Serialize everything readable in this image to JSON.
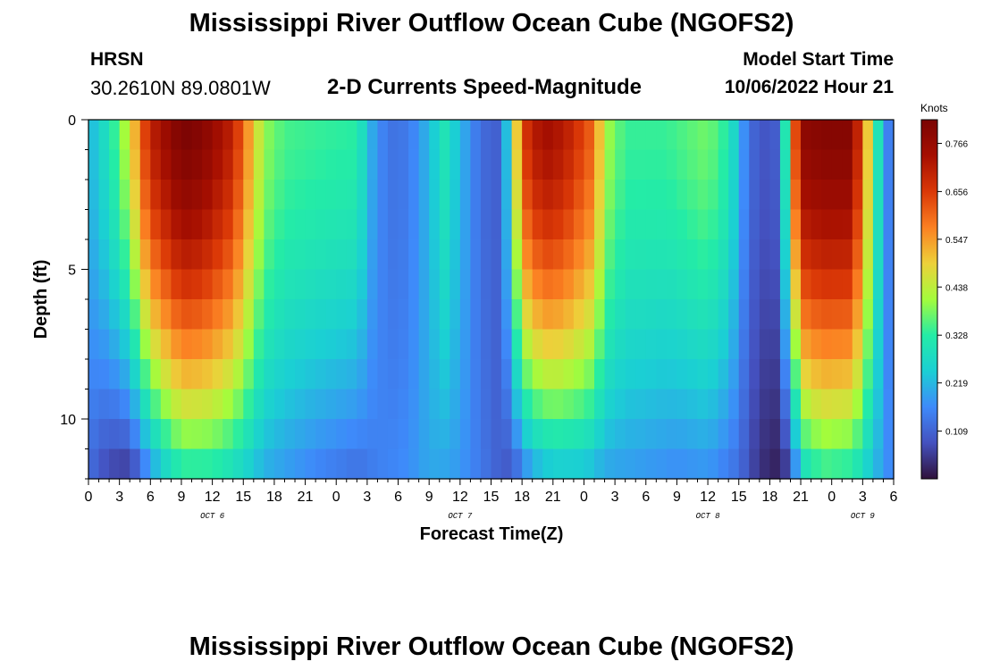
{
  "header": {
    "title": "Mississippi River Outflow Ocean Cube (NGOFS2)",
    "station_name": "HRSN",
    "station_coords": "30.2610N  89.0801W",
    "subtitle": "2-D Currents Speed-Magnitude",
    "model_start_label": "Model Start Time",
    "model_start_value": "10/06/2022 Hour 21"
  },
  "footer": {
    "title": "Mississippi River Outflow Ocean Cube (NGOFS2)"
  },
  "chart_data": {
    "type": "heatmap",
    "title": "2-D Currents Speed-Magnitude",
    "xlabel": "Forecast Time(Z)",
    "ylabel": "Depth (ft)",
    "units": "Knots",
    "x_range_hours": [
      0,
      78
    ],
    "x_ticks": [
      {
        "h": 0,
        "label": "0"
      },
      {
        "h": 3,
        "label": "3"
      },
      {
        "h": 6,
        "label": "6"
      },
      {
        "h": 9,
        "label": "9"
      },
      {
        "h": 12,
        "label": "12"
      },
      {
        "h": 15,
        "label": "15"
      },
      {
        "h": 18,
        "label": "18"
      },
      {
        "h": 21,
        "label": "21"
      },
      {
        "h": 24,
        "label": "0"
      },
      {
        "h": 27,
        "label": "3"
      },
      {
        "h": 30,
        "label": "6"
      },
      {
        "h": 33,
        "label": "9"
      },
      {
        "h": 36,
        "label": "12"
      },
      {
        "h": 39,
        "label": "15"
      },
      {
        "h": 42,
        "label": "18"
      },
      {
        "h": 45,
        "label": "21"
      },
      {
        "h": 48,
        "label": "0"
      },
      {
        "h": 51,
        "label": "3"
      },
      {
        "h": 54,
        "label": "6"
      },
      {
        "h": 57,
        "label": "9"
      },
      {
        "h": 60,
        "label": "12"
      },
      {
        "h": 63,
        "label": "15"
      },
      {
        "h": 66,
        "label": "18"
      },
      {
        "h": 69,
        "label": "21"
      },
      {
        "h": 72,
        "label": "0"
      },
      {
        "h": 75,
        "label": "3"
      },
      {
        "h": 78,
        "label": "6"
      }
    ],
    "day_labels": [
      {
        "h": 12,
        "label": "OCT 6"
      },
      {
        "h": 36,
        "label": "OCT 7"
      },
      {
        "h": 60,
        "label": "OCT 8"
      },
      {
        "h": 75,
        "label": "OCT 9"
      }
    ],
    "y_range_ft": [
      0,
      12
    ],
    "y_ticks": [
      {
        "d": 0,
        "label": "0"
      },
      {
        "d": 5,
        "label": "5"
      },
      {
        "d": 10,
        "label": "10"
      }
    ],
    "colorbar_range": [
      0.0,
      0.82
    ],
    "colorbar_ticks": [
      {
        "v": 0.109,
        "label": "0.109"
      },
      {
        "v": 0.219,
        "label": "0.219"
      },
      {
        "v": 0.328,
        "label": "0.328"
      },
      {
        "v": 0.438,
        "label": "0.438"
      },
      {
        "v": 0.547,
        "label": "0.547"
      },
      {
        "v": 0.656,
        "label": "0.656"
      },
      {
        "v": 0.766,
        "label": "0.766"
      }
    ],
    "depth_levels_ft": [
      0,
      1,
      2,
      3,
      4,
      5,
      6,
      7,
      8,
      9,
      10,
      11,
      12
    ],
    "surface_speed_knots": [
      {
        "h": 0,
        "v": 0.21
      },
      {
        "h": 2,
        "v": 0.3
      },
      {
        "h": 4,
        "v": 0.45
      },
      {
        "h": 5,
        "v": 0.6
      },
      {
        "h": 6,
        "v": 0.7
      },
      {
        "h": 8,
        "v": 0.78
      },
      {
        "h": 9,
        "v": 0.82
      },
      {
        "h": 11,
        "v": 0.8
      },
      {
        "h": 14,
        "v": 0.7
      },
      {
        "h": 15.5,
        "v": 0.55
      },
      {
        "h": 17,
        "v": 0.4
      },
      {
        "h": 19,
        "v": 0.35
      },
      {
        "h": 22,
        "v": 0.34
      },
      {
        "h": 26,
        "v": 0.33
      },
      {
        "h": 27.5,
        "v": 0.2
      },
      {
        "h": 29,
        "v": 0.13
      },
      {
        "h": 31,
        "v": 0.14
      },
      {
        "h": 33,
        "v": 0.22
      },
      {
        "h": 34.5,
        "v": 0.3
      },
      {
        "h": 36,
        "v": 0.22
      },
      {
        "h": 38,
        "v": 0.12
      },
      {
        "h": 40,
        "v": 0.1
      },
      {
        "h": 41,
        "v": 0.35
      },
      {
        "h": 42,
        "v": 0.65
      },
      {
        "h": 44,
        "v": 0.75
      },
      {
        "h": 46,
        "v": 0.72
      },
      {
        "h": 49,
        "v": 0.6
      },
      {
        "h": 50,
        "v": 0.42
      },
      {
        "h": 52,
        "v": 0.34
      },
      {
        "h": 56,
        "v": 0.34
      },
      {
        "h": 60,
        "v": 0.38
      },
      {
        "h": 62,
        "v": 0.32
      },
      {
        "h": 63,
        "v": 0.22
      },
      {
        "h": 64,
        "v": 0.12
      },
      {
        "h": 66,
        "v": 0.08
      },
      {
        "h": 67,
        "v": 0.12
      },
      {
        "h": 68,
        "v": 0.5
      },
      {
        "h": 69,
        "v": 0.78
      },
      {
        "h": 71,
        "v": 0.8
      },
      {
        "h": 74,
        "v": 0.8
      },
      {
        "h": 75.5,
        "v": 0.5
      },
      {
        "h": 76.5,
        "v": 0.3
      },
      {
        "h": 77.5,
        "v": 0.15
      },
      {
        "h": 78,
        "v": 0.12
      }
    ],
    "bottom_speed_knots": [
      {
        "h": 0,
        "v": 0.12
      },
      {
        "h": 2,
        "v": 0.06
      },
      {
        "h": 4,
        "v": 0.04
      },
      {
        "h": 5,
        "v": 0.1
      },
      {
        "h": 7,
        "v": 0.22
      },
      {
        "h": 9,
        "v": 0.3
      },
      {
        "h": 12,
        "v": 0.3
      },
      {
        "h": 15,
        "v": 0.25
      },
      {
        "h": 17,
        "v": 0.2
      },
      {
        "h": 19,
        "v": 0.18
      },
      {
        "h": 22,
        "v": 0.15
      },
      {
        "h": 26,
        "v": 0.12
      },
      {
        "h": 28,
        "v": 0.15
      },
      {
        "h": 31,
        "v": 0.17
      },
      {
        "h": 33,
        "v": 0.2
      },
      {
        "h": 36,
        "v": 0.18
      },
      {
        "h": 39,
        "v": 0.12
      },
      {
        "h": 41,
        "v": 0.08
      },
      {
        "h": 43,
        "v": 0.18
      },
      {
        "h": 45,
        "v": 0.22
      },
      {
        "h": 48,
        "v": 0.22
      },
      {
        "h": 50,
        "v": 0.19
      },
      {
        "h": 53,
        "v": 0.18
      },
      {
        "h": 57,
        "v": 0.16
      },
      {
        "h": 60,
        "v": 0.17
      },
      {
        "h": 63,
        "v": 0.12
      },
      {
        "h": 65,
        "v": 0.04
      },
      {
        "h": 66.5,
        "v": 0.02
      },
      {
        "h": 68,
        "v": 0.05
      },
      {
        "h": 69,
        "v": 0.25
      },
      {
        "h": 71,
        "v": 0.32
      },
      {
        "h": 74,
        "v": 0.3
      },
      {
        "h": 76,
        "v": 0.22
      },
      {
        "h": 78,
        "v": 0.15
      }
    ]
  }
}
